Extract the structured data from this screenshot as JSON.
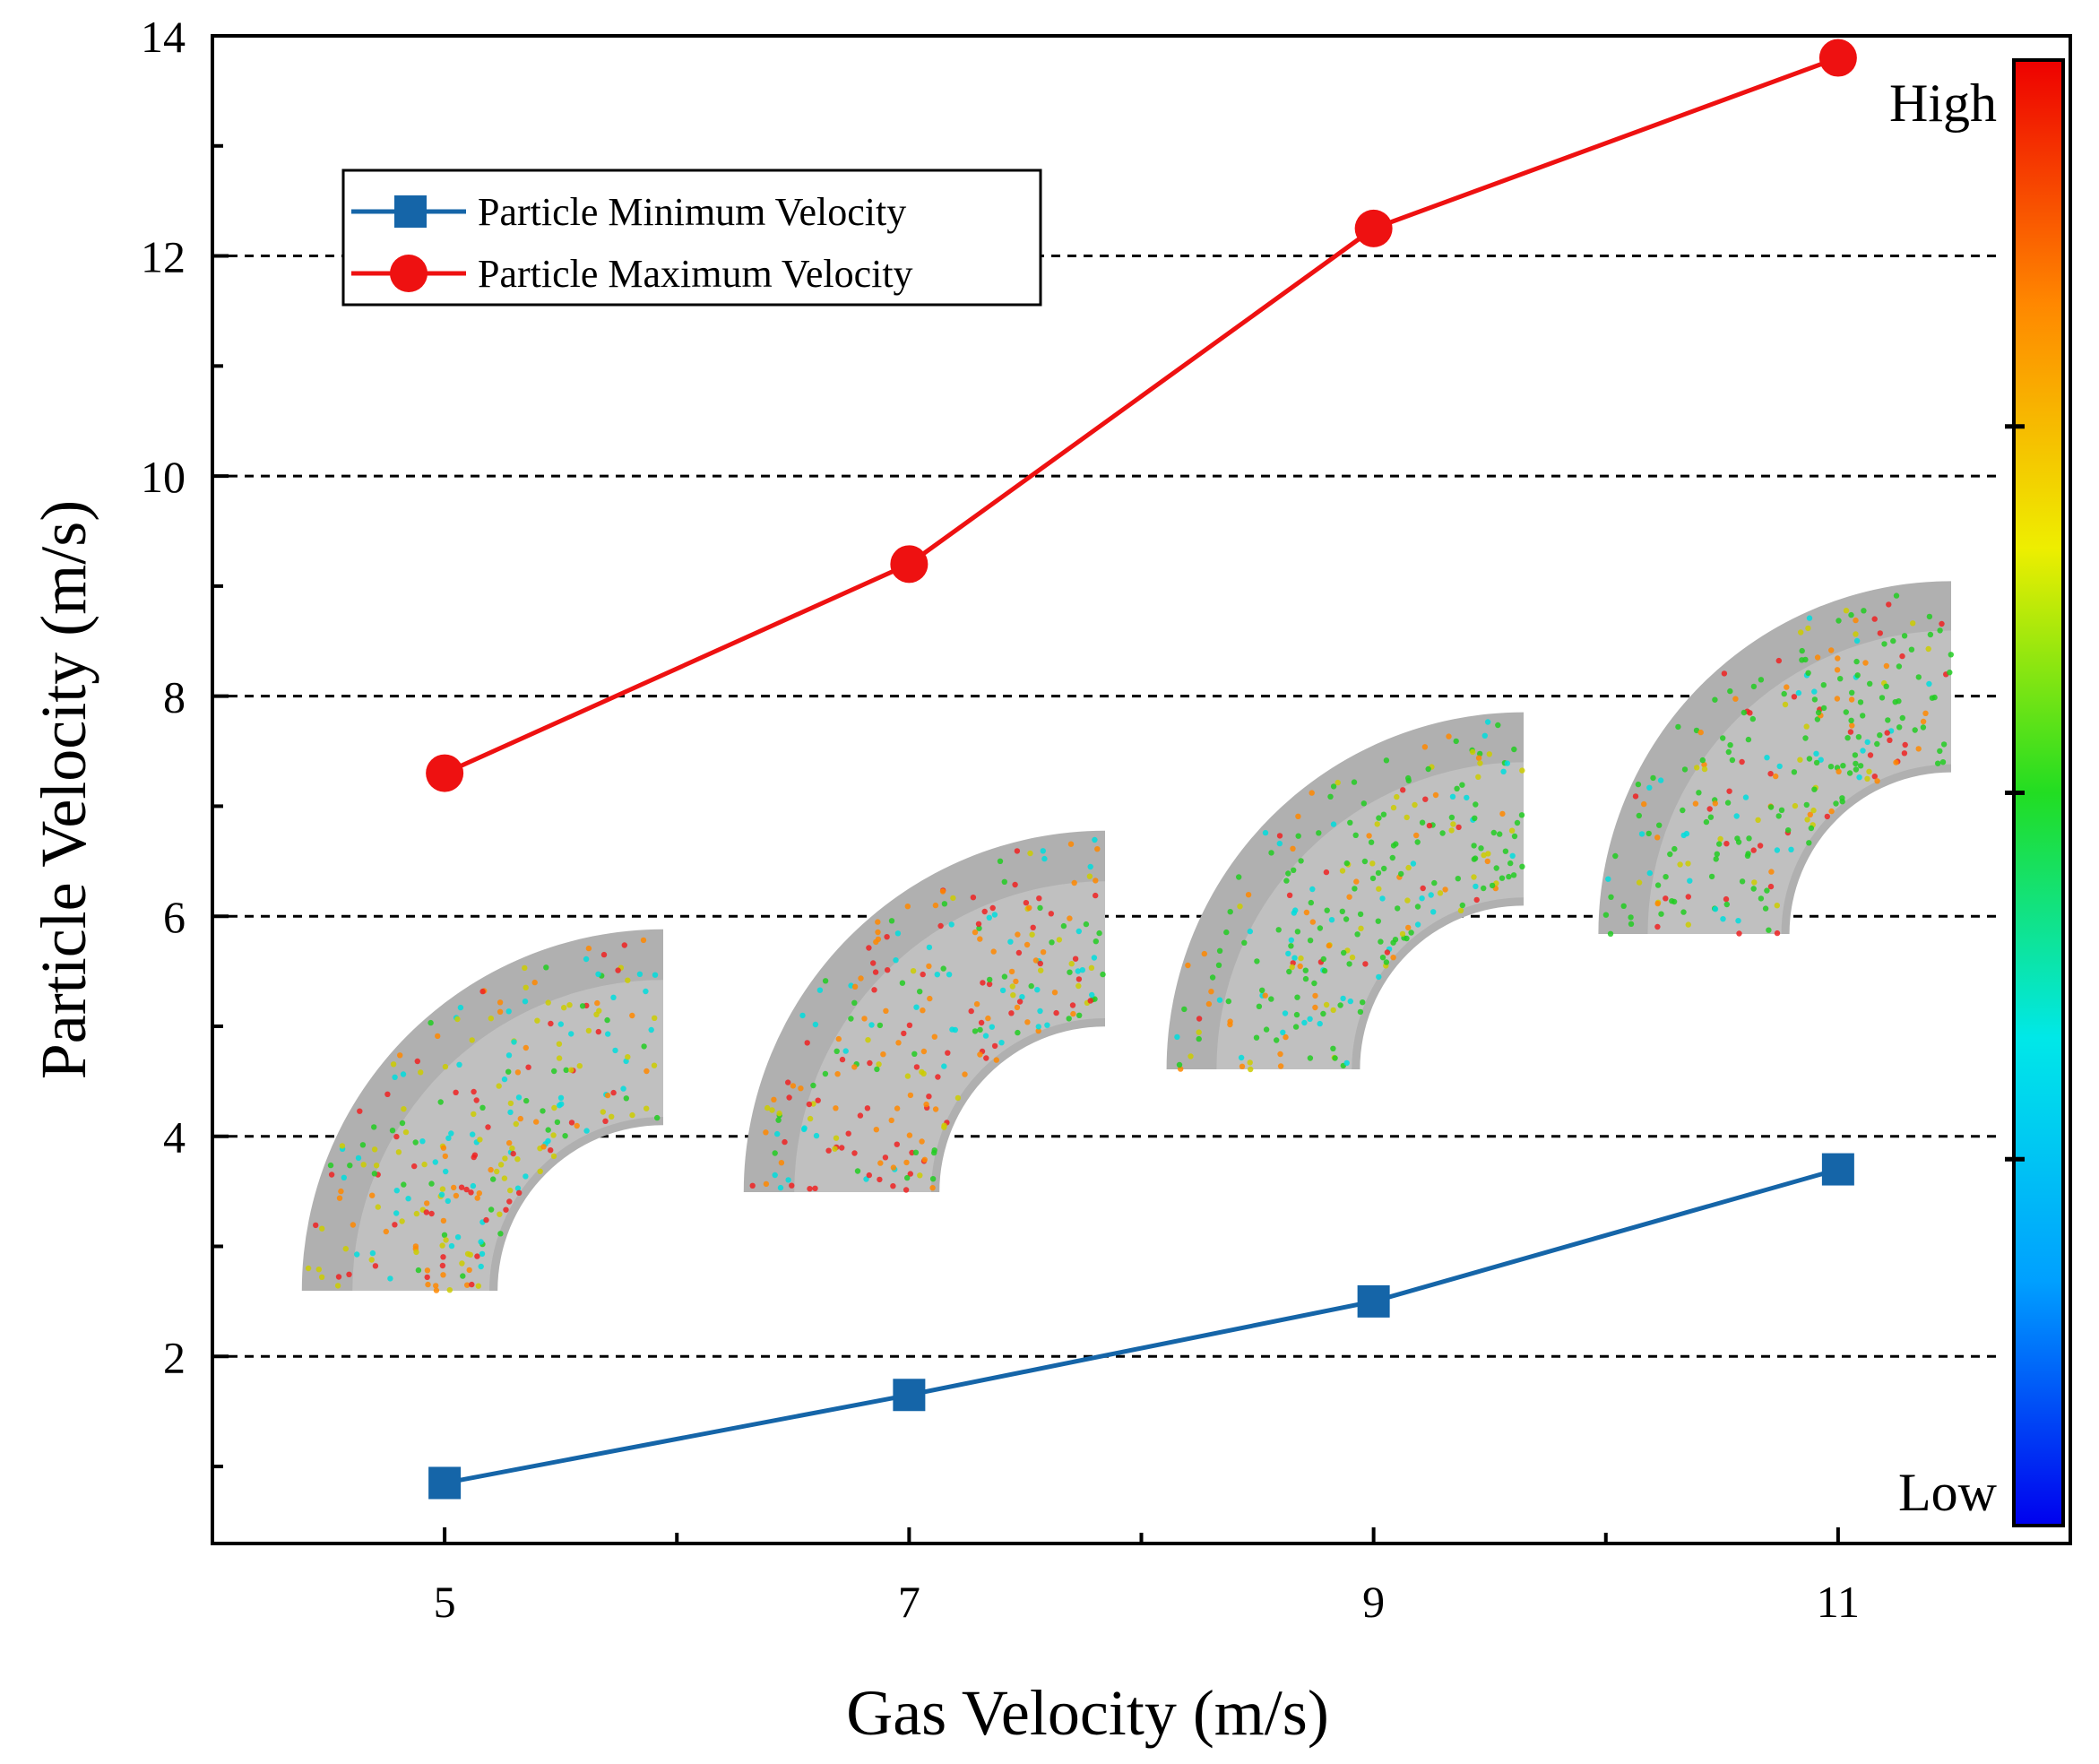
{
  "chart_data": {
    "type": "line",
    "x": [
      5,
      7,
      9,
      11
    ],
    "series": [
      {
        "name": "Particle Minimum Velocity",
        "values": [
          0.85,
          1.65,
          2.5,
          3.7
        ],
        "color": "#1565a8",
        "marker": "square"
      },
      {
        "name": "Particle Maximum Velocity",
        "values": [
          7.3,
          9.2,
          12.25,
          13.8
        ],
        "color": "#ee1111",
        "marker": "circle"
      }
    ],
    "xlabel": "Gas Velocity (m/s)",
    "ylabel": "Particle Velocity (m/s)",
    "x_ticks": [
      "5",
      "7",
      "9",
      "11"
    ],
    "y_ticks": [
      "2",
      "4",
      "6",
      "8",
      "10",
      "12",
      "14"
    ],
    "xlim": [
      4,
      12
    ],
    "ylim": [
      0.3,
      14
    ],
    "grid": "horizontal dashed",
    "legend_position": "top-left",
    "colorbar": {
      "high_label": "High",
      "low_label": "Low",
      "colors": [
        "#0000ee",
        "#00a0ff",
        "#00e8e8",
        "#22dd22",
        "#eeee00",
        "#ff8800",
        "#ee0000"
      ]
    },
    "insets": [
      "elbow-5",
      "elbow-7",
      "elbow-9",
      "elbow-11"
    ]
  }
}
